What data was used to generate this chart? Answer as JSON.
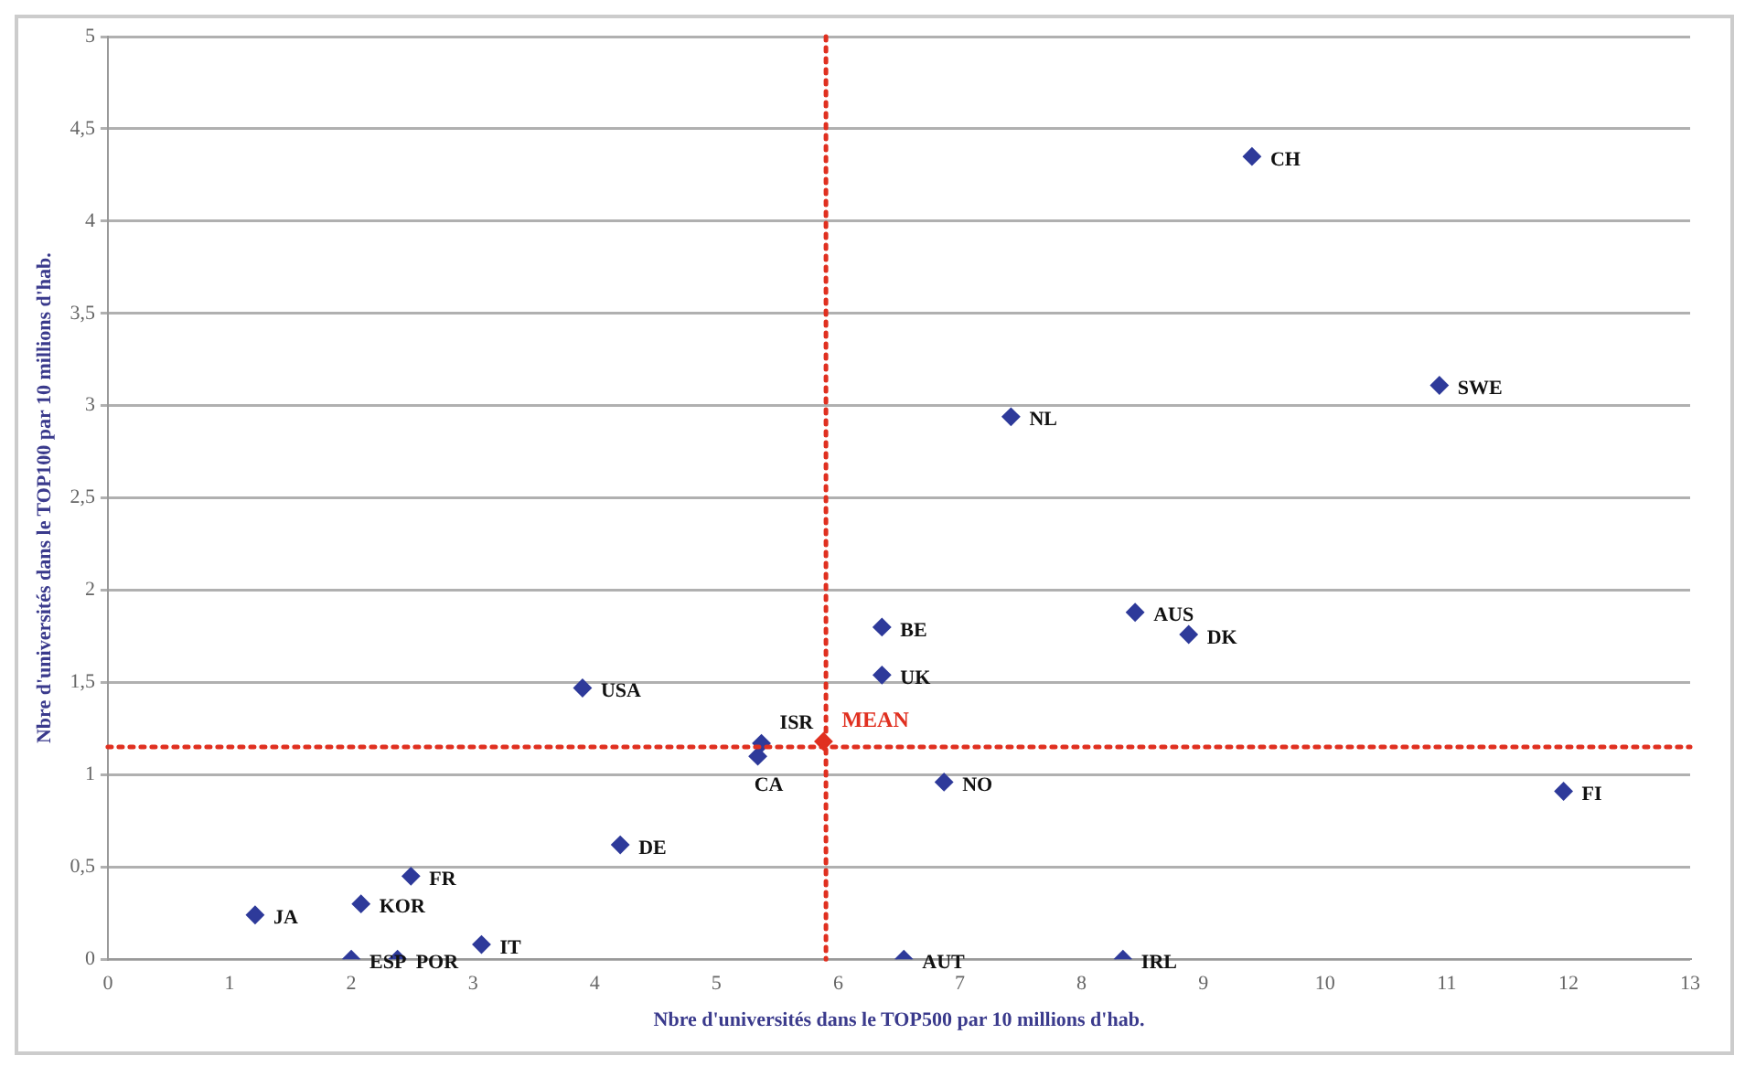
{
  "chart_data": {
    "type": "scatter",
    "xlabel": "Nbre d'universités dans le TOP500 par 10 millions d'hab.",
    "ylabel": "Nbre d'universités dans le TOP100 par 10 millions d'hab.",
    "xlim": [
      0,
      13
    ],
    "xticks": [
      0,
      1,
      2,
      3,
      4,
      5,
      6,
      7,
      8,
      9,
      10,
      11,
      12,
      13
    ],
    "ylim": [
      0,
      5
    ],
    "yticks": [
      0,
      {
        "value": 0.5,
        "label": "0,5"
      },
      1,
      {
        "value": 1.5,
        "label": "1,5"
      },
      2,
      {
        "value": 2.5,
        "label": "2,5"
      },
      3,
      {
        "value": 3.5,
        "label": "3,5"
      },
      4,
      {
        "value": 4.5,
        "label": "4,5"
      },
      5
    ],
    "grid": "y",
    "legend": false,
    "marker": "diamond",
    "series": [
      {
        "color": "#2e3a9a",
        "x": [
          9.4,
          10.94,
          7.42,
          6.36,
          8.44,
          8.88,
          6.36,
          3.9,
          5.37,
          5.34,
          6.87,
          11.96,
          4.21,
          2.49,
          2.08,
          1.21,
          3.07,
          2.0,
          2.38,
          6.54,
          8.34
        ],
        "values": [
          4.35,
          3.11,
          2.94,
          1.8,
          1.88,
          1.76,
          1.54,
          1.47,
          1.17,
          1.1,
          0.96,
          0.91,
          0.62,
          0.45,
          0.3,
          0.24,
          0.08,
          0,
          0,
          0,
          0
        ]
      },
      {
        "name": "MEAN",
        "color": "#e03020",
        "x": [
          5.88
        ],
        "values": [
          1.18
        ]
      }
    ],
    "ref_lines": [
      {
        "axis": "x",
        "value": 5.9,
        "color": "#e03020",
        "line_style": "dotted"
      },
      {
        "axis": "y",
        "value": 1.15,
        "color": "#e03020",
        "line_style": "dotted"
      }
    ],
    "annotations": [
      {
        "text": "CH",
        "x": 9.4,
        "y": 4.35
      },
      {
        "text": "SWE",
        "x": 10.94,
        "y": 3.11
      },
      {
        "text": "NL",
        "x": 7.42,
        "y": 2.94
      },
      {
        "text": "BE",
        "x": 6.36,
        "y": 1.8
      },
      {
        "text": "AUS",
        "x": 8.44,
        "y": 1.88
      },
      {
        "text": "DK",
        "x": 8.88,
        "y": 1.76
      },
      {
        "text": "UK",
        "x": 6.36,
        "y": 1.54
      },
      {
        "text": "USA",
        "x": 3.9,
        "y": 1.47
      },
      {
        "text": "ISR",
        "x": 5.37,
        "y": 1.17
      },
      {
        "text": "CA",
        "x": 5.34,
        "y": 1.1
      },
      {
        "text": "NO",
        "x": 6.87,
        "y": 0.96
      },
      {
        "text": "FI",
        "x": 11.96,
        "y": 0.91
      },
      {
        "text": "DE",
        "x": 4.21,
        "y": 0.62
      },
      {
        "text": "FR",
        "x": 2.49,
        "y": 0.45
      },
      {
        "text": "KOR",
        "x": 2.08,
        "y": 0.3
      },
      {
        "text": "JA",
        "x": 1.21,
        "y": 0.24
      },
      {
        "text": "IT",
        "x": 3.07,
        "y": 0.08
      },
      {
        "text": "ESP",
        "x": 2.0,
        "y": 0
      },
      {
        "text": "POR",
        "x": 2.38,
        "y": 0
      },
      {
        "text": "AUT",
        "x": 6.54,
        "y": 0
      },
      {
        "text": "IRL",
        "x": 8.34,
        "y": 0
      }
    ]
  }
}
